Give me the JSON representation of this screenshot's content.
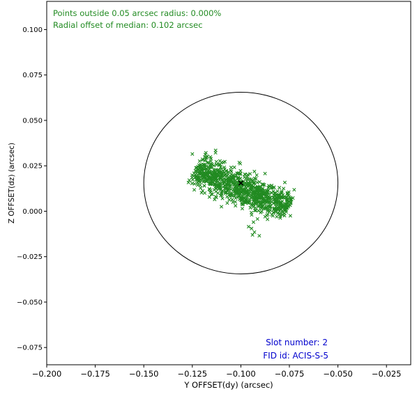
{
  "chart_data": {
    "type": "scatter",
    "xlabel": "Y OFFSET(dy) (arcsec)",
    "ylabel": "Z OFFSET(dz) (arcsec)",
    "xlim": [
      -0.2,
      -0.0125
    ],
    "ylim": [
      -0.0845,
      0.1155
    ],
    "xticks": [
      -0.2,
      -0.175,
      -0.15,
      -0.125,
      -0.1,
      -0.075,
      -0.05,
      -0.025
    ],
    "xtick_labels": [
      "−0.200",
      "−0.175",
      "−0.150",
      "−0.125",
      "−0.100",
      "−0.075",
      "−0.050",
      "−0.025"
    ],
    "yticks": [
      -0.075,
      -0.05,
      -0.025,
      0.0,
      0.025,
      0.05,
      0.075,
      0.1
    ],
    "ytick_labels": [
      "−0.075",
      "−0.050",
      "−0.025",
      "0.000",
      "0.025",
      "0.050",
      "0.075",
      "0.100"
    ],
    "grid": false,
    "circle": {
      "center": [
        -0.1,
        0.0155
      ],
      "radius": 0.05
    },
    "median": {
      "x": -0.1,
      "y": 0.0155
    },
    "cloud": {
      "start": [
        -0.122,
        0.0225
      ],
      "end": [
        -0.077,
        0.0025
      ],
      "half_width": 0.0075,
      "approx_points": 900
    },
    "outliers": [
      [
        -0.127,
        0.0158
      ],
      [
        -0.124,
        0.0118
      ],
      [
        -0.125,
        0.0315
      ],
      [
        -0.118,
        0.0322
      ],
      [
        -0.113,
        0.0335
      ],
      [
        -0.1135,
        0.0065
      ],
      [
        -0.106,
        0.0063
      ],
      [
        -0.107,
        0.0045
      ],
      [
        -0.11,
        0.0025
      ],
      [
        -0.0905,
        0.0072
      ],
      [
        -0.0935,
        -0.006
      ],
      [
        -0.0945,
        -0.0095
      ],
      [
        -0.096,
        -0.0085
      ],
      [
        -0.093,
        -0.0115
      ],
      [
        -0.094,
        -0.013
      ],
      [
        -0.0905,
        -0.0135
      ],
      [
        -0.0875,
        -0.003
      ],
      [
        -0.0835,
        -0.0025
      ],
      [
        -0.0815,
        -0.003
      ],
      [
        -0.0745,
        -0.0025
      ],
      [
        -0.0755,
        0.0025
      ],
      [
        -0.078,
        0.0125
      ],
      [
        -0.0755,
        0.0085
      ]
    ],
    "colors": {
      "points": "#228b22",
      "median": "#000000",
      "circle": "#000000"
    }
  },
  "annotations": {
    "outside": "Points outside 0.05 arcsec radius: 0.000%",
    "radial": "Radial offset of median: 0.102 arcsec",
    "slot": "Slot number: 2",
    "fid": "FID id: ACIS-S-5",
    "green": "#228b22",
    "blue": "#0000cd"
  }
}
